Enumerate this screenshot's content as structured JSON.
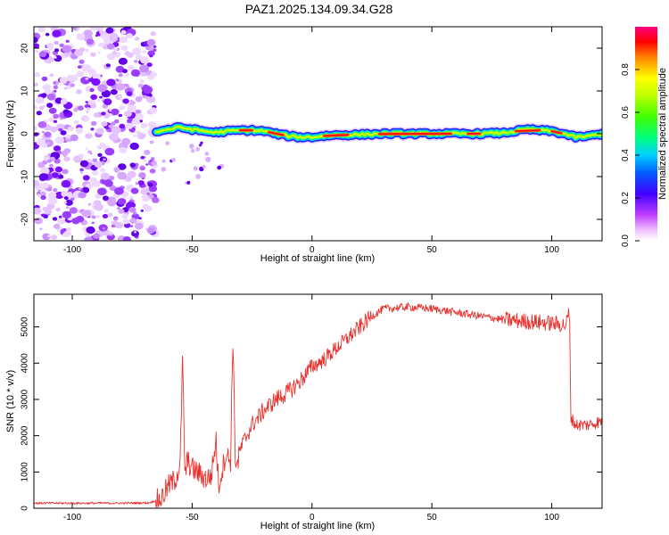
{
  "title": "PAZ1.2025.134.09.34.G28",
  "colors": {
    "snr_line": "#e8322e",
    "colormap": [
      "#ffffff",
      "#ff00ff",
      "#8000ff",
      "#0000ff",
      "#00c0ff",
      "#00ff80",
      "#80ff00",
      "#ffff00",
      "#ff8000",
      "#ff0000"
    ]
  },
  "chart_data": [
    {
      "type": "heatmap",
      "title": "",
      "xlabel": "Height of straight line (km)",
      "ylabel": "Frequency (Hz)",
      "xlim": [
        -116,
        121
      ],
      "ylim": [
        -25,
        25
      ],
      "xticks": [
        -100,
        -50,
        0,
        50,
        100
      ],
      "xtick_labels": [
        "-100",
        "-50",
        "0",
        "50",
        "100"
      ],
      "yticks": [
        -20,
        -10,
        0,
        10,
        20
      ],
      "ytick_labels": [
        "-20",
        "-10",
        "0",
        "10",
        "20"
      ],
      "noise_region_x": [
        -116,
        -65
      ],
      "ridge": {
        "x": [
          -65,
          -60,
          -55,
          -50,
          -45,
          -40,
          -35,
          -30,
          -25,
          -20,
          -15,
          -10,
          -5,
          0,
          5,
          10,
          20,
          30,
          40,
          50,
          60,
          70,
          80,
          85,
          90,
          95,
          100,
          105,
          110,
          115,
          121
        ],
        "freq": [
          0.5,
          1.0,
          1.5,
          1.0,
          0.6,
          0.3,
          0.6,
          0.8,
          0.8,
          0.6,
          0.0,
          -0.5,
          -0.8,
          -0.8,
          -0.5,
          -0.3,
          -0.2,
          0.0,
          0.0,
          0.0,
          0.0,
          0.0,
          0.2,
          0.6,
          1.0,
          0.8,
          0.6,
          0.0,
          -0.8,
          -0.6,
          0.0
        ]
      },
      "colorbar": {
        "label": "Normalized spectral amplitude",
        "range": [
          0,
          1
        ],
        "ticks": [
          0.0,
          0.2,
          0.4,
          0.6,
          0.8
        ],
        "tick_labels": [
          "0.0",
          "0.2",
          "0.4",
          "0.6",
          "0.8"
        ]
      }
    },
    {
      "type": "line",
      "title": "",
      "xlabel": "Height of straight line (km)",
      "ylabel": "SNR (10 * v/v)",
      "xlim": [
        -116,
        121
      ],
      "ylim": [
        0,
        5900
      ],
      "xticks": [
        -100,
        -50,
        0,
        50,
        100
      ],
      "xtick_labels": [
        "-100",
        "-50",
        "0",
        "50",
        "100"
      ],
      "yticks": [
        0,
        1000,
        2000,
        3000,
        4000,
        5000
      ],
      "ytick_labels": [
        "0",
        "1000",
        "2000",
        "3000",
        "4000",
        "5000"
      ],
      "series": [
        {
          "name": "SNR",
          "x": [
            -116,
            -100,
            -80,
            -68,
            -63,
            -60,
            -57,
            -55,
            -54,
            -53,
            -52,
            -50,
            -46,
            -44,
            -42,
            -40,
            -39,
            -38,
            -36,
            -34,
            -33,
            -32,
            -31,
            -30,
            -28,
            -25,
            -20,
            -15,
            -10,
            -5,
            0,
            5,
            10,
            15,
            20,
            25,
            30,
            40,
            50,
            60,
            70,
            80,
            90,
            100,
            106,
            107,
            107.5,
            108,
            110,
            115,
            121
          ],
          "values": [
            140,
            140,
            140,
            150,
            250,
            600,
            800,
            1200,
            4100,
            900,
            1300,
            1100,
            900,
            800,
            900,
            1900,
            600,
            900,
            1500,
            1300,
            4700,
            1400,
            1200,
            1600,
            1900,
            2300,
            2700,
            3000,
            3200,
            3500,
            3900,
            4100,
            4400,
            4700,
            5000,
            5300,
            5500,
            5550,
            5500,
            5400,
            5300,
            5200,
            5150,
            5100,
            5050,
            5400,
            5000,
            2500,
            2300,
            2300,
            2400
          ]
        }
      ]
    }
  ]
}
